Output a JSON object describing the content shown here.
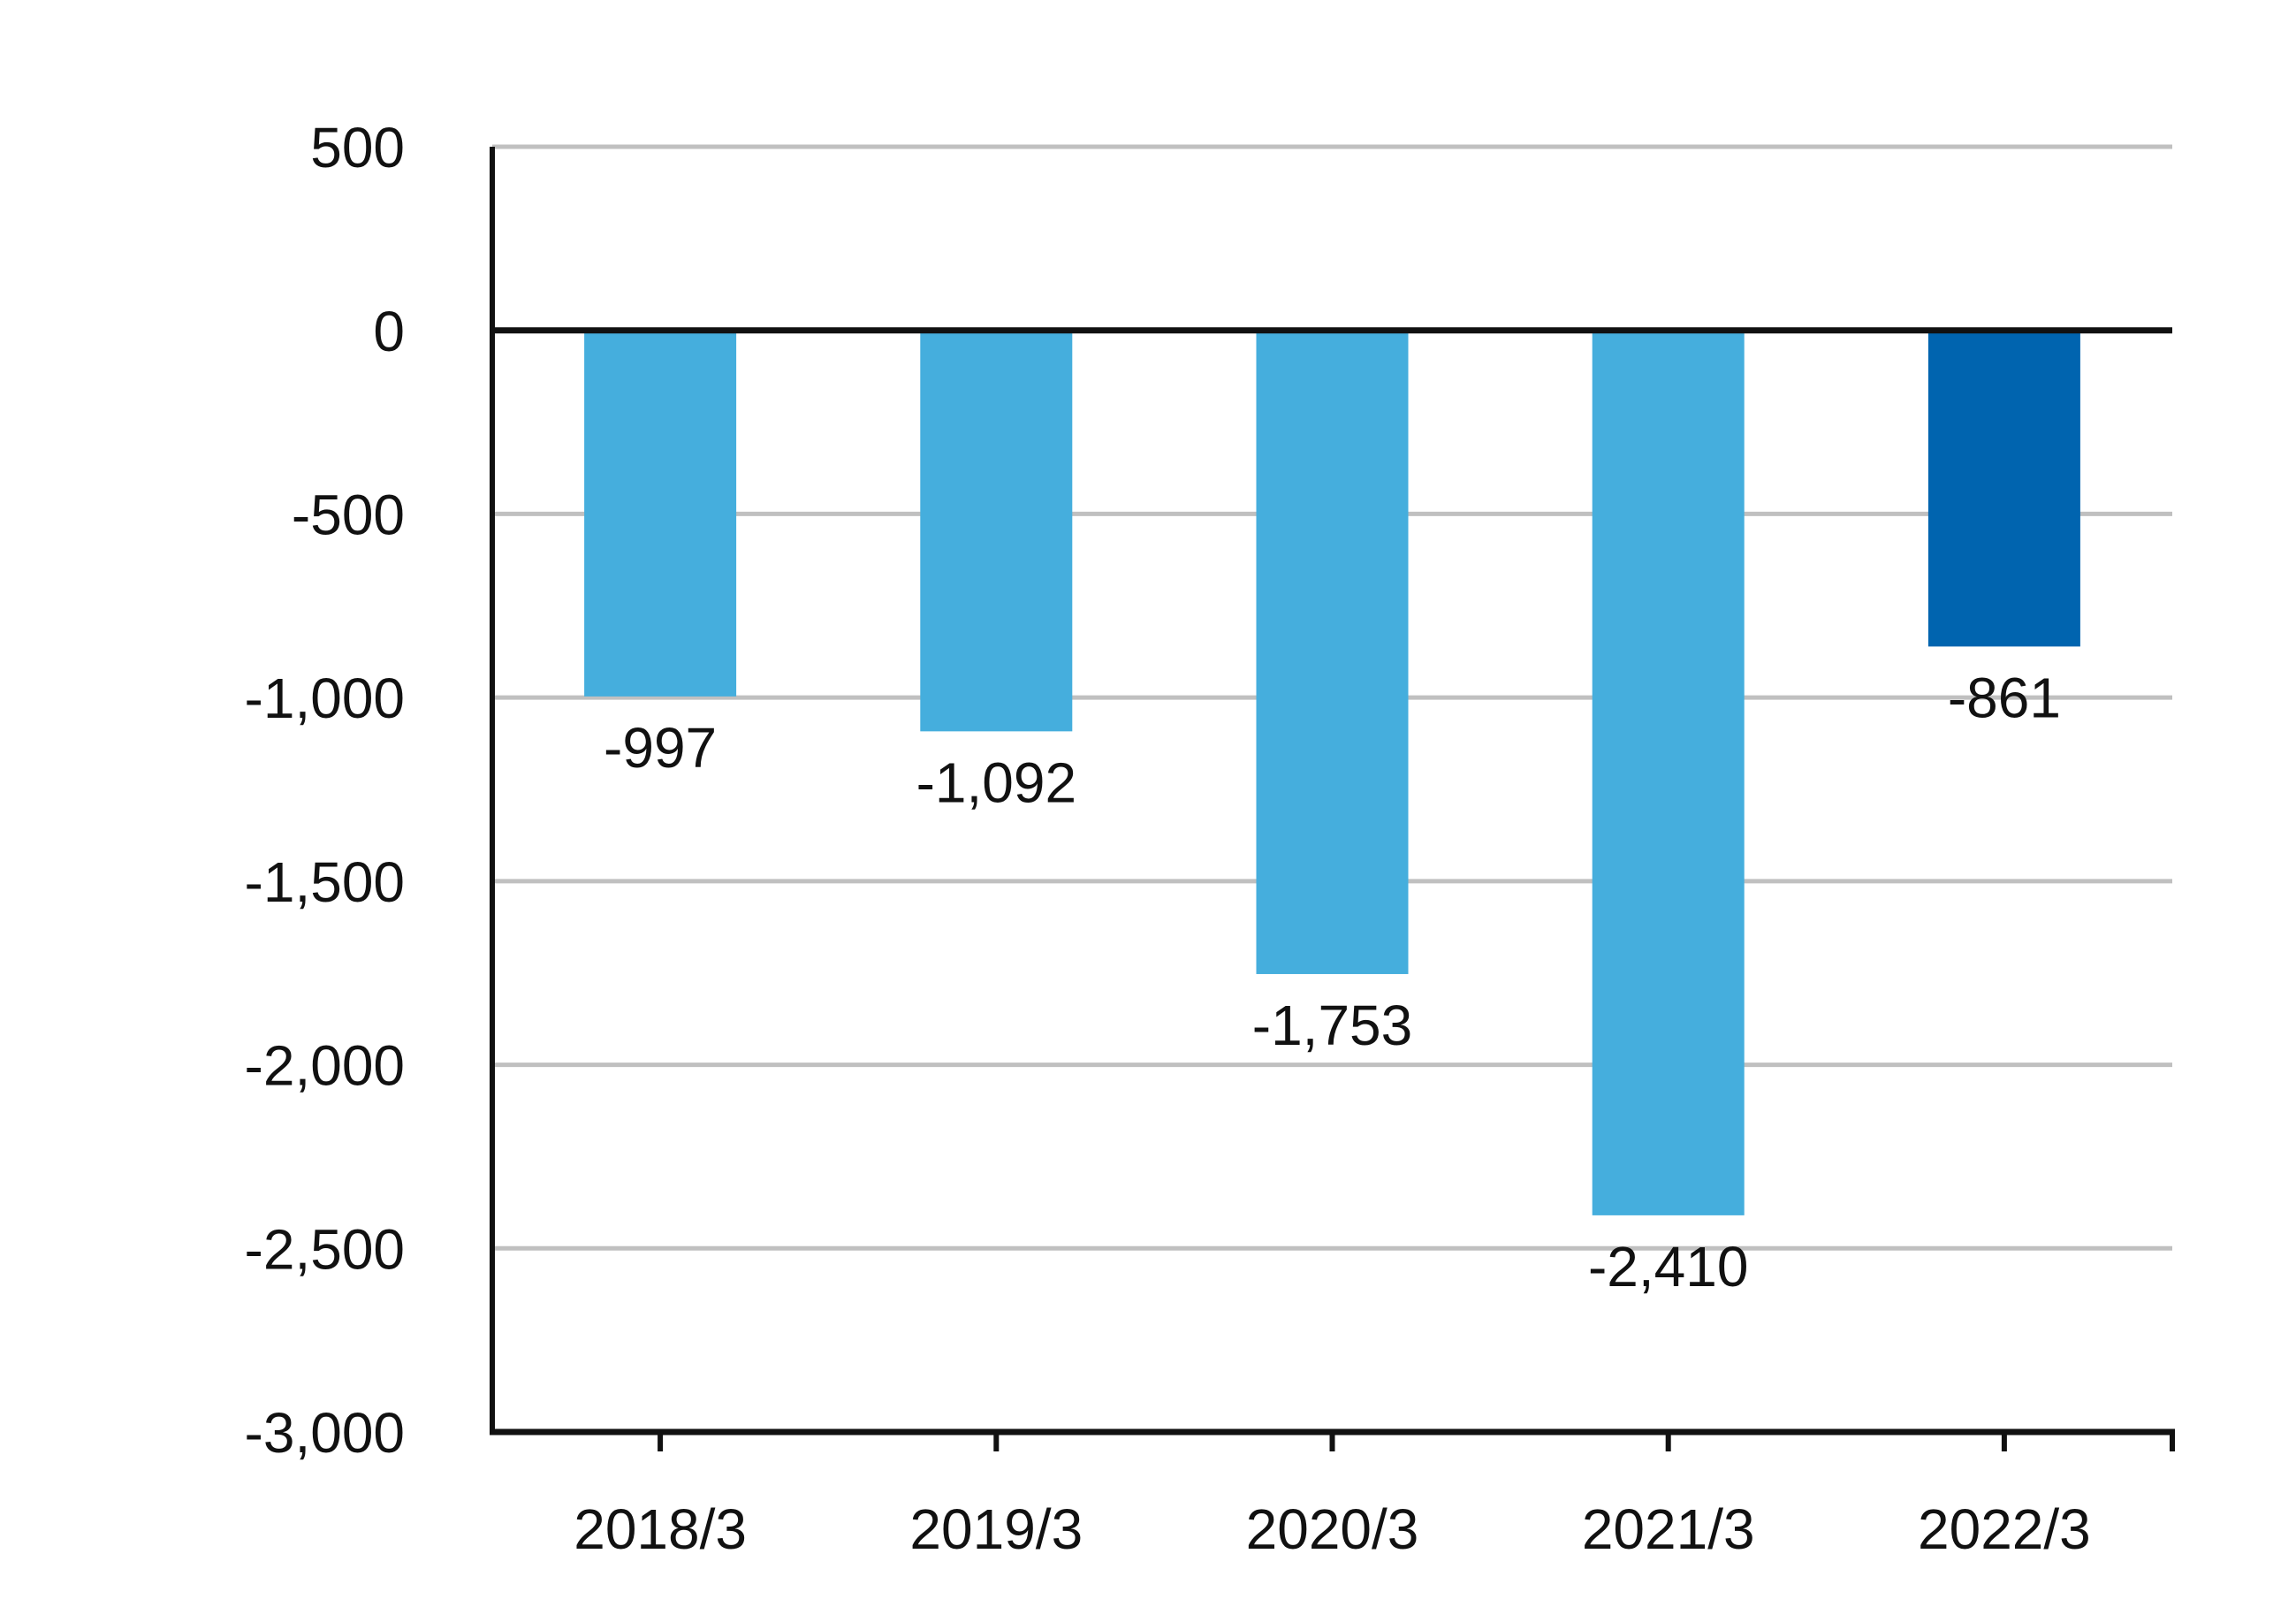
{
  "chart_data": {
    "type": "bar",
    "title": "",
    "xlabel": "",
    "ylabel": "",
    "categories": [
      "2018/3",
      "2019/3",
      "2020/3",
      "2021/3",
      "2022/3"
    ],
    "values": [
      -997,
      -1092,
      -1753,
      -2410,
      -861
    ],
    "value_labels": [
      "-997",
      "-1,092",
      "-1,753",
      "-2,410",
      "-861"
    ],
    "ylim": [
      -3000,
      500
    ],
    "y_ticks": [
      500,
      0,
      -500,
      -1000,
      -1500,
      -2000,
      -2500,
      -3000
    ],
    "y_tick_labels": [
      "500",
      "0",
      "-500",
      "-1,000",
      "-1,500",
      "-2,000",
      "-2,500",
      "-3,000"
    ],
    "grid": true,
    "legend": "none",
    "colors": {
      "bar": "#45AEDD",
      "bar_highlight": "#0064AF",
      "gridline": "#C0C0C0",
      "axis": "#111111"
    },
    "highlight_index": 4
  }
}
